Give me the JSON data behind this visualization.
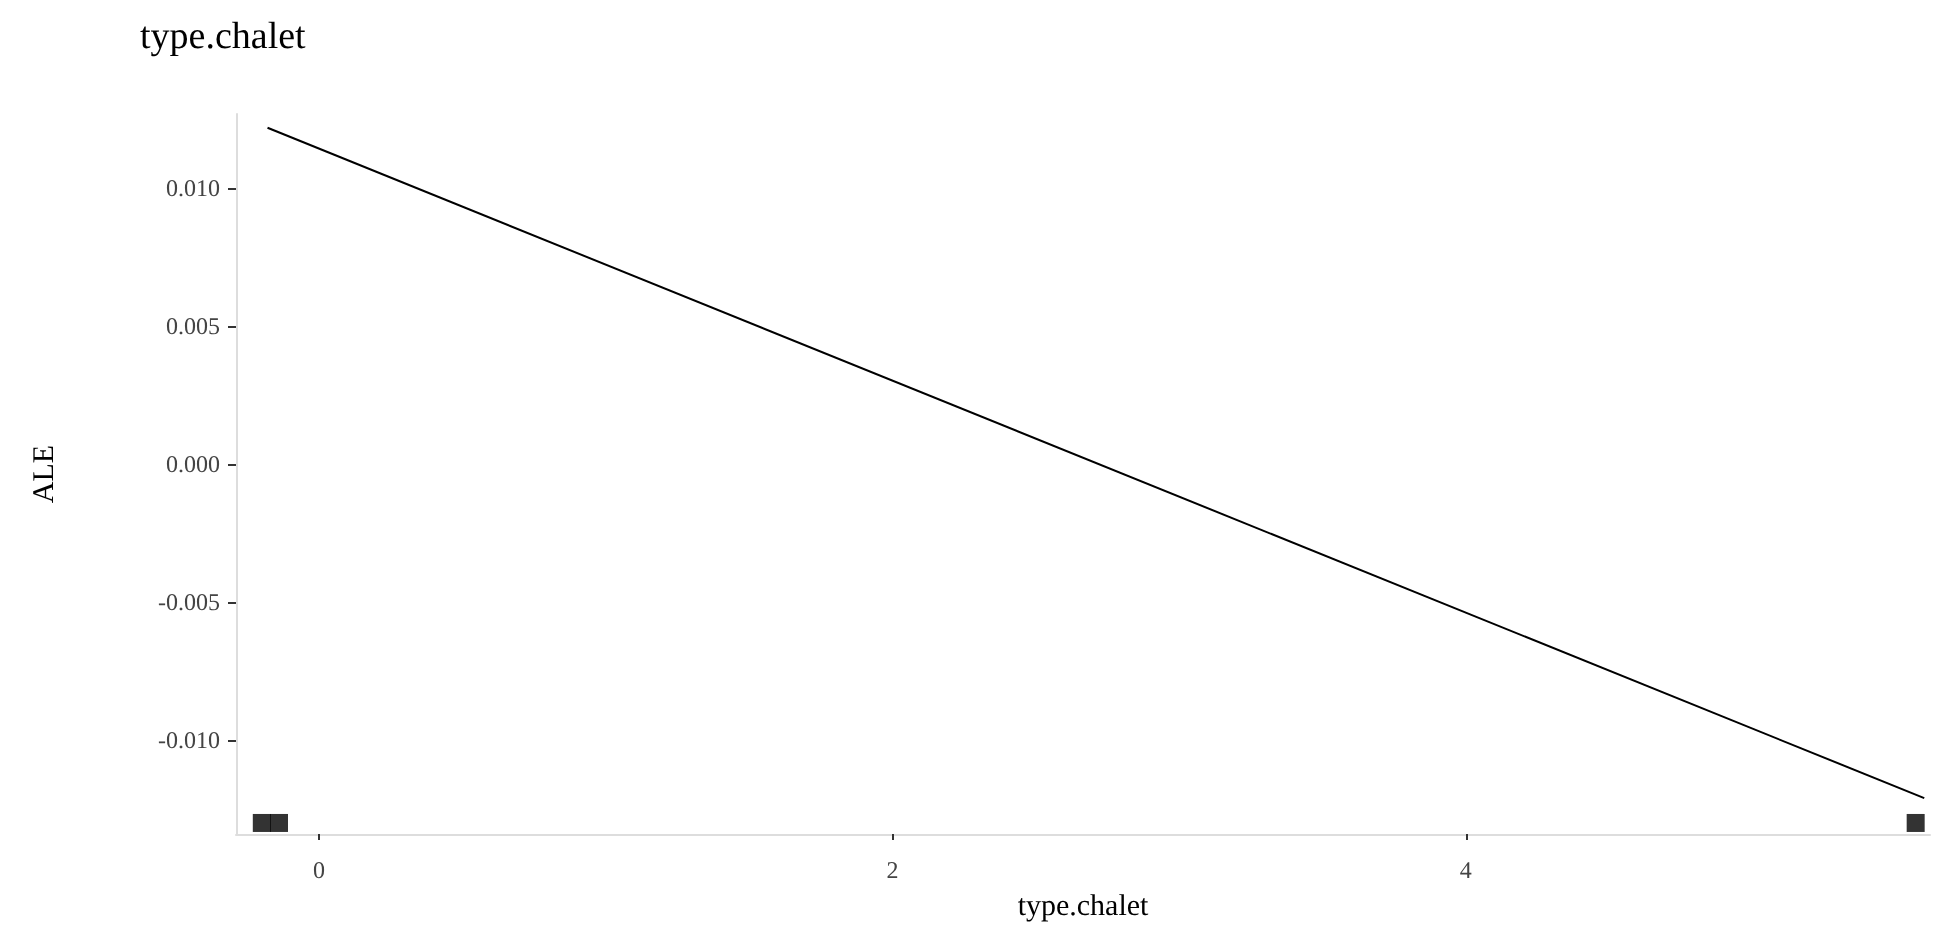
{
  "chart_data": {
    "type": "line",
    "title": "type.chalet",
    "xlabel": "type.chalet",
    "ylabel": "ALE",
    "xlim": [
      -0.29,
      5.62
    ],
    "xticks": [
      0,
      2,
      4
    ],
    "ylim": [
      -0.0134,
      0.0127
    ],
    "yticks": [
      {
        "value": -0.01,
        "label": "-0.010"
      },
      {
        "value": -0.005,
        "label": "-0.005"
      },
      {
        "value": 0,
        "label": "0.000"
      },
      {
        "value": 0.005,
        "label": "0.005"
      },
      {
        "value": 0.01,
        "label": "0.010"
      }
    ],
    "grid": false,
    "series": [
      {
        "color": "#000000",
        "x": [
          -0.18,
          5.6
        ],
        "values": [
          0.0122,
          -0.0121
        ]
      },
      {
        "type": "scatter",
        "marker": "square",
        "color": "#000000",
        "x": [
          -0.2,
          -0.14,
          5.57
        ],
        "values": [
          -0.013,
          -0.013,
          -0.013
        ]
      }
    ]
  }
}
